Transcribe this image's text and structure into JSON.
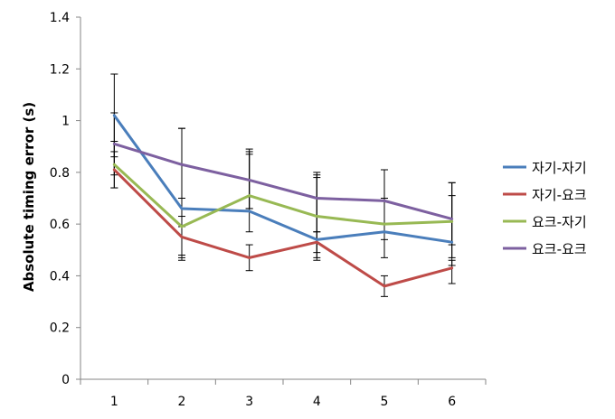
{
  "chart_data": {
    "type": "line",
    "title": "",
    "xlabel": "",
    "ylabel": "Absolute timing error (s)",
    "x": [
      1,
      2,
      3,
      4,
      5,
      6
    ],
    "ylim": [
      0,
      1.4
    ],
    "yticks": [
      0,
      0.2,
      0.4,
      0.6,
      0.8,
      1,
      1.2,
      1.4
    ],
    "ytick_labels": [
      "0",
      "0.2",
      "0.4",
      "0.6",
      "0.8",
      "1",
      "1.2",
      "1.4"
    ],
    "grid": false,
    "legend_position": "right",
    "series": [
      {
        "name": "자기-자기",
        "color": "#4a7ebb",
        "values": [
          1.02,
          0.66,
          0.65,
          0.54,
          0.57,
          0.53
        ],
        "err_upper": [
          1.18,
          0.97,
          0.87,
          0.78,
          0.81,
          0.71
        ],
        "err_lower": [
          0.86,
          0.46,
          0.57,
          0.46,
          0.47,
          0.44
        ]
      },
      {
        "name": "자기-요크",
        "color": "#be4b48",
        "values": [
          0.81,
          0.55,
          0.47,
          0.53,
          0.36,
          0.43
        ],
        "err_upper": [
          0.88,
          0.63,
          0.52,
          0.57,
          0.4,
          0.46
        ],
        "err_lower": [
          0.74,
          0.47,
          0.42,
          0.49,
          0.32,
          0.37
        ]
      },
      {
        "name": "요크-자기",
        "color": "#98b954",
        "values": [
          0.83,
          0.59,
          0.71,
          0.63,
          0.6,
          0.61
        ],
        "err_upper": [
          0.92,
          0.7,
          0.88,
          0.79,
          0.7,
          0.76
        ],
        "err_lower": [
          0.74,
          0.48,
          0.66,
          0.47,
          0.54,
          0.52
        ]
      },
      {
        "name": "요크-요크",
        "color": "#7d60a0",
        "values": [
          0.91,
          0.83,
          0.77,
          0.7,
          0.69,
          0.62
        ],
        "err_upper": [
          1.03,
          0.97,
          0.89,
          0.8,
          0.81,
          0.76
        ],
        "err_lower": [
          0.79,
          0.59,
          0.66,
          0.57,
          0.6,
          0.47
        ]
      }
    ]
  }
}
